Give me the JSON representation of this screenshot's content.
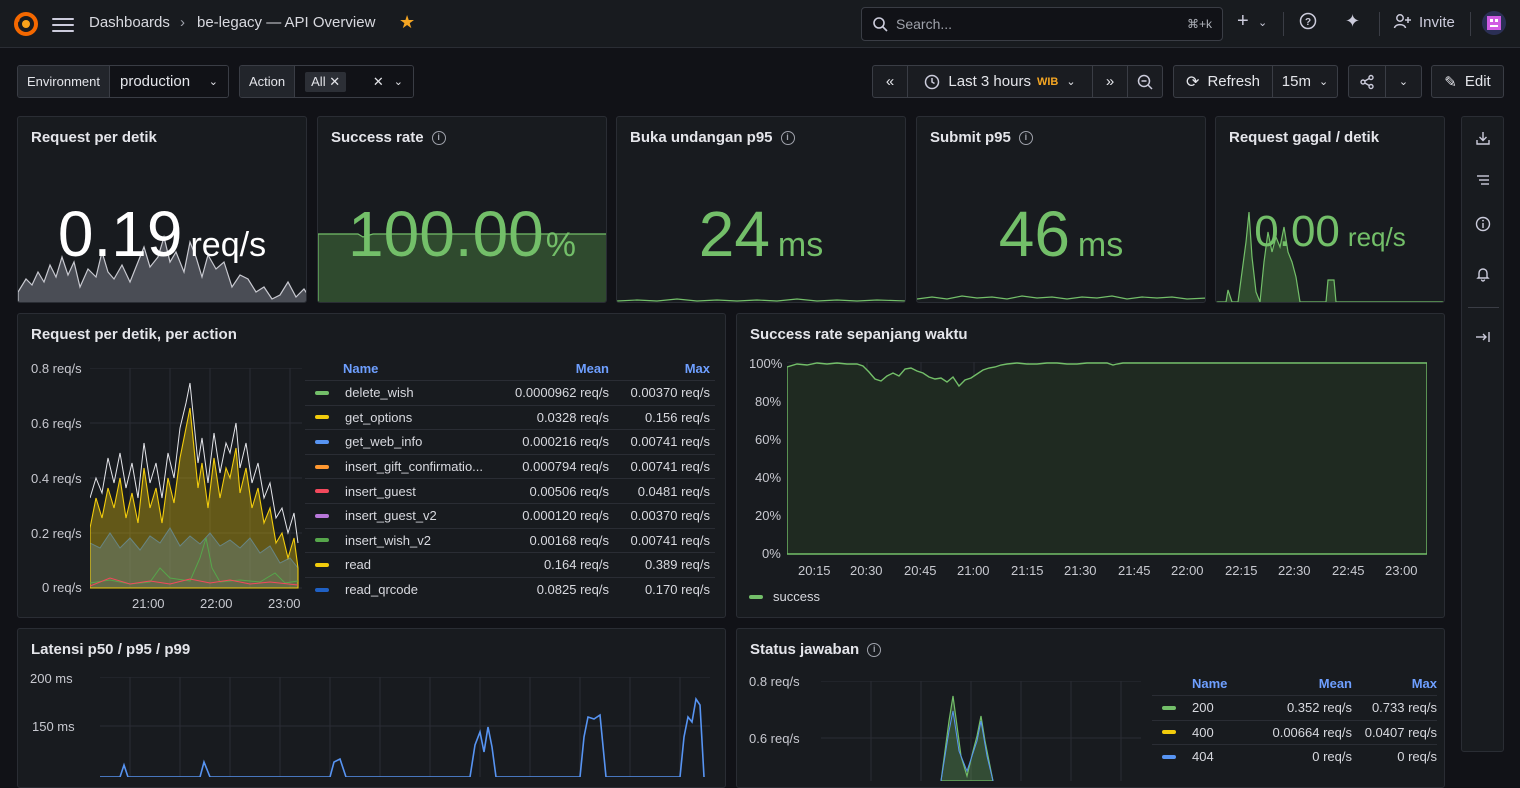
{
  "breadcrumb": {
    "root": "Dashboards",
    "separator": "›",
    "current": "be-legacy — API Overview"
  },
  "search": {
    "placeholder": "Search...",
    "shortcut": "⌘+k"
  },
  "topbar": {
    "invite_label": "Invite"
  },
  "variables": [
    {
      "label": "Environment",
      "value": "production"
    },
    {
      "label": "Action",
      "value": "All"
    }
  ],
  "time": {
    "range": "Last 3 hours",
    "tz": "WIB",
    "refresh_label": "Refresh",
    "interval": "15m",
    "edit_label": "Edit"
  },
  "stats": [
    {
      "title": "Request per detik",
      "value": "0.19",
      "unit": "req/s",
      "color": "#ffffff",
      "has_info": false
    },
    {
      "title": "Success rate",
      "value": "100.00",
      "unit": "%",
      "color": "#73bf69",
      "has_info": true
    },
    {
      "title": "Buka undangan p95",
      "value": "24",
      "unit": "ms",
      "color": "#73bf69",
      "has_info": true
    },
    {
      "title": "Submit p95",
      "value": "46",
      "unit": "ms",
      "color": "#73bf69",
      "has_info": true
    },
    {
      "title": "Request gagal / detik",
      "value": "0.00",
      "unit": "req/s",
      "color": "#73bf69",
      "has_info": false
    }
  ],
  "action_panel": {
    "title": "Request per detik, per action",
    "y_ticks": [
      "0.8 req/s",
      "0.6 req/s",
      "0.4 req/s",
      "0.2 req/s",
      "0 req/s"
    ],
    "x_ticks": [
      "21:00",
      "22:00",
      "23:00"
    ],
    "legend_headers": {
      "name": "Name",
      "mean": "Mean",
      "max": "Max"
    },
    "legend": [
      {
        "name": "delete_wish",
        "mean": "0.0000962 req/s",
        "max": "0.00370 req/s",
        "color": "#73bf69"
      },
      {
        "name": "get_options",
        "mean": "0.0328 req/s",
        "max": "0.156 req/s",
        "color": "#f2cc0c"
      },
      {
        "name": "get_web_info",
        "mean": "0.000216 req/s",
        "max": "0.00741 req/s",
        "color": "#5794f2"
      },
      {
        "name": "insert_gift_confirmatio...",
        "mean": "0.000794 req/s",
        "max": "0.00741 req/s",
        "color": "#ff9830"
      },
      {
        "name": "insert_guest",
        "mean": "0.00506 req/s",
        "max": "0.0481 req/s",
        "color": "#f2495c"
      },
      {
        "name": "insert_guest_v2",
        "mean": "0.000120 req/s",
        "max": "0.00370 req/s",
        "color": "#b877d9"
      },
      {
        "name": "insert_wish_v2",
        "mean": "0.00168 req/s",
        "max": "0.00741 req/s",
        "color": "#56a64b"
      },
      {
        "name": "read",
        "mean": "0.164 req/s",
        "max": "0.389 req/s",
        "color": "#f2cc0c"
      },
      {
        "name": "read_qrcode",
        "mean": "0.0825 req/s",
        "max": "0.170 req/s",
        "color": "#1f60c4"
      }
    ]
  },
  "success_panel": {
    "title": "Success rate sepanjang waktu",
    "y_ticks": [
      "100%",
      "80%",
      "60%",
      "40%",
      "20%",
      "0%"
    ],
    "x_ticks": [
      "20:15",
      "20:30",
      "20:45",
      "21:00",
      "21:15",
      "21:30",
      "21:45",
      "22:00",
      "22:15",
      "22:30",
      "22:45",
      "23:00"
    ],
    "legend_label": "success",
    "color": "#73bf69"
  },
  "latency_panel": {
    "title": "Latensi p50 / p95 / p99",
    "y_ticks": [
      "200 ms",
      "150 ms"
    ]
  },
  "status_panel": {
    "title": "Status jawaban",
    "y_ticks": [
      "0.8 req/s",
      "0.6 req/s"
    ],
    "legend_headers": {
      "name": "Name",
      "mean": "Mean",
      "max": "Max"
    },
    "legend": [
      {
        "name": "200",
        "mean": "0.352 req/s",
        "max": "0.733 req/s",
        "color": "#73bf69"
      },
      {
        "name": "400",
        "mean": "0.00664 req/s",
        "max": "0.0407 req/s",
        "color": "#f2cc0c"
      },
      {
        "name": "404",
        "mean": "0 req/s",
        "max": "0 req/s",
        "color": "#5794f2"
      }
    ]
  }
}
